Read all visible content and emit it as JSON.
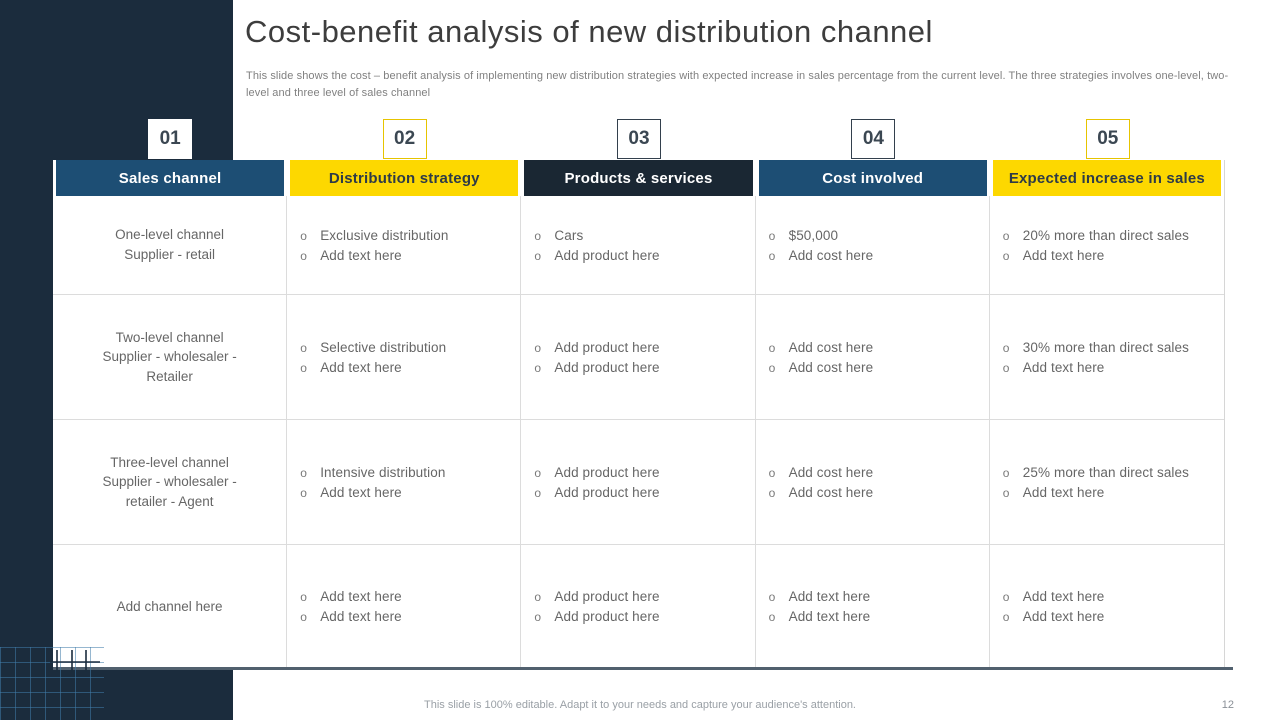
{
  "slide": {
    "title": "Cost-benefit analysis of new distribution channel",
    "subtitle": "This slide shows the cost – benefit analysis of implementing new distribution strategies with expected increase in sales percentage from the current level.  The three strategies involves one-level, two-level and three level of sales channel",
    "footer": "This slide is 100% editable. Adapt it to your needs and capture your audience's attention.",
    "page_number": "12"
  },
  "colors": {
    "dark_navy": "#1b2c3d",
    "header_navy": "#1d4e74",
    "header_dark": "#1a2733",
    "accent_yellow": "#fdd800",
    "body_text": "#666666"
  },
  "table": {
    "columns": [
      {
        "number": "01",
        "header": "Sales channel",
        "header_style": "navy",
        "badge_style": "plain"
      },
      {
        "number": "02",
        "header": "Distribution strategy",
        "header_style": "yellow",
        "badge_style": "yellow"
      },
      {
        "number": "03",
        "header": "Products & services",
        "header_style": "darknavy",
        "badge_style": "dark"
      },
      {
        "number": "04",
        "header": "Cost involved",
        "header_style": "navy",
        "badge_style": "dark"
      },
      {
        "number": "05",
        "header": "Expected increase in sales",
        "header_style": "yellow",
        "badge_style": "yellow"
      }
    ],
    "rows": [
      {
        "channel_lines": [
          "One-level channel",
          "Supplier - retail"
        ],
        "bullets": [
          [
            "Exclusive distribution",
            "Add text here"
          ],
          [
            "Cars",
            "Add product here"
          ],
          [
            "$50,000",
            "Add cost here"
          ],
          [
            "20% more than direct sales",
            "Add text here"
          ]
        ]
      },
      {
        "channel_lines": [
          "Two-level channel",
          "Supplier - wholesaler -",
          "Retailer"
        ],
        "bullets": [
          [
            "Selective distribution",
            "Add text here"
          ],
          [
            "Add product here",
            "Add product here"
          ],
          [
            "Add cost here",
            "Add cost here"
          ],
          [
            "30% more than direct sales",
            "Add text here"
          ]
        ]
      },
      {
        "channel_lines": [
          "Three-level channel",
          "Supplier - wholesaler -",
          "retailer - Agent"
        ],
        "bullets": [
          [
            "Intensive distribution",
            "Add text here"
          ],
          [
            "Add product here",
            "Add product here"
          ],
          [
            "Add cost here",
            "Add cost here"
          ],
          [
            "25% more than direct sales",
            "Add text here"
          ]
        ]
      },
      {
        "channel_lines": [
          "Add channel here"
        ],
        "bullets": [
          [
            "Add text here",
            "Add text here"
          ],
          [
            "Add product here",
            "Add product here"
          ],
          [
            "Add text here",
            "Add text here"
          ],
          [
            "Add text here",
            "Add text here"
          ]
        ]
      }
    ]
  }
}
